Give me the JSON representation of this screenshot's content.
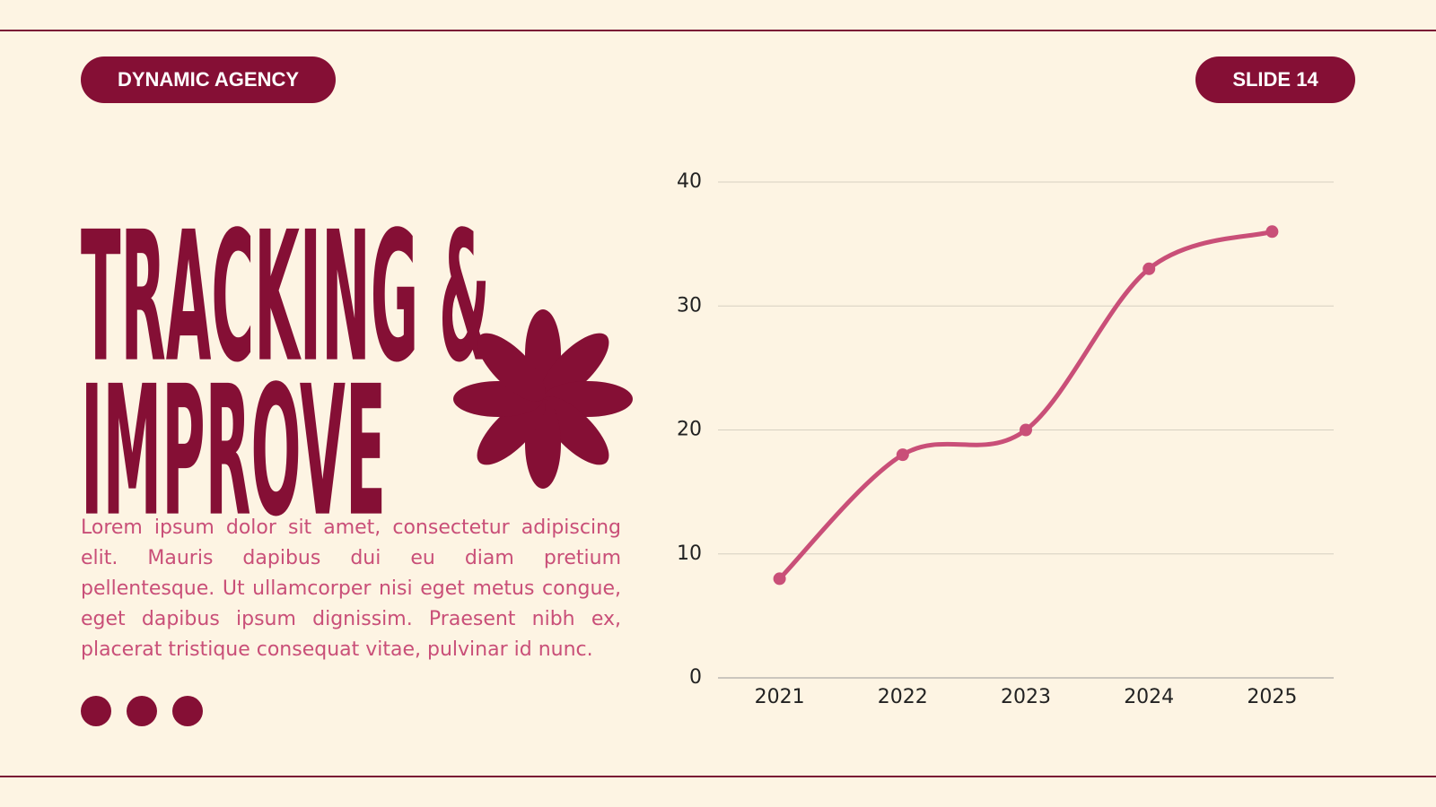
{
  "header": {
    "brand": "DYNAMIC AGENCY",
    "slide": "SLIDE 14"
  },
  "title": [
    "TRACKING &",
    "IMPROVE"
  ],
  "body": "Lorem ipsum dolor sit amet, consectetur adipiscing elit. Mauris dapibus dui eu diam pretium pellentesque. Ut ullamcorper nisi eget metus congue, eget dapibus ipsum dignissim. Praesent nibh ex, placerat tristique consequat vitae, pulvinar id nunc.",
  "chart_data": {
    "type": "line",
    "categories": [
      "2021",
      "2022",
      "2023",
      "2024",
      "2025"
    ],
    "series": [
      {
        "color": "#c94f78",
        "values": [
          8,
          18,
          20,
          33,
          36
        ]
      }
    ],
    "ylim": [
      0,
      40
    ],
    "yticks": [
      0,
      10,
      20,
      30,
      40
    ],
    "grid": true
  }
}
